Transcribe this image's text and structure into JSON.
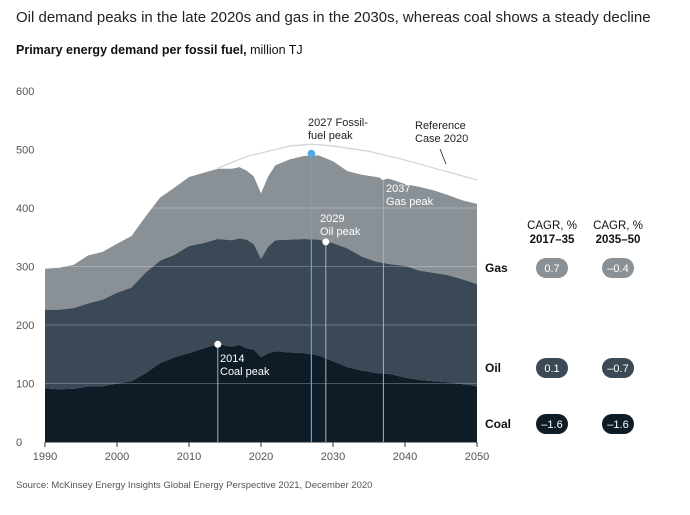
{
  "title": "Oil demand peaks in the late 2020s and gas in the 2030s, whereas coal shows a steady decline",
  "subtitle_bold": "Primary energy demand per fossil fuel,",
  "subtitle_unit": " million TJ",
  "source": "Source: McKinsey Energy Insights Global Energy Perspective 2021, December 2020",
  "colors": {
    "coal": "#0e1c28",
    "oil": "#3b4855",
    "gas": "#8a9196",
    "fossil_peak_line": "#4fa9e3",
    "reference_line": "#d4d8dc",
    "axis_text": "#555555"
  },
  "chart_data": {
    "type": "area",
    "stacked": true,
    "x": [
      1990,
      1992,
      1994,
      1996,
      1998,
      2000,
      2002,
      2004,
      2006,
      2008,
      2010,
      2012,
      2014,
      2016,
      2017,
      2018,
      2019,
      2020,
      2021,
      2022,
      2024,
      2026,
      2028,
      2030,
      2032,
      2034,
      2036,
      2038,
      2040,
      2042,
      2044,
      2046,
      2048,
      2050
    ],
    "series": [
      {
        "name": "Coal",
        "values": [
          92,
          90,
          91,
          95,
          95,
          100,
          104,
          118,
          135,
          145,
          152,
          160,
          167,
          163,
          166,
          160,
          158,
          145,
          152,
          155,
          153,
          152,
          148,
          138,
          128,
          122,
          118,
          116,
          110,
          106,
          104,
          102,
          99,
          95
        ]
      },
      {
        "name": "Oil",
        "values": [
          134,
          136,
          138,
          142,
          148,
          155,
          160,
          172,
          175,
          175,
          183,
          180,
          180,
          182,
          182,
          186,
          180,
          168,
          182,
          190,
          193,
          195,
          198,
          202,
          203,
          195,
          190,
          188,
          191,
          187,
          185,
          183,
          179,
          175
        ]
      },
      {
        "name": "Gas",
        "values": [
          70,
          72,
          74,
          82,
          82,
          84,
          88,
          96,
          108,
          115,
          118,
          120,
          120,
          122,
          122,
          118,
          116,
          112,
          120,
          128,
          137,
          142,
          144,
          140,
          132,
          140,
          145,
          145,
          140,
          143,
          141,
          137,
          135,
          137
        ]
      }
    ],
    "reference_case_2020": {
      "x": [
        2014,
        2018,
        2022,
        2024,
        2027,
        2030,
        2035,
        2040,
        2045,
        2050
      ],
      "values": [
        468,
        488,
        500,
        506,
        509,
        506,
        497,
        482,
        465,
        448
      ]
    },
    "ylim": [
      0,
      600
    ],
    "yticks": [
      "0",
      "100",
      "200",
      "300",
      "400",
      "500",
      "600"
    ],
    "xticks": [
      "1990",
      "2000",
      "2010",
      "2020",
      "2030",
      "2040",
      "2050"
    ],
    "x_tick_values": [
      1990,
      2000,
      2010,
      2020,
      2030,
      2040,
      2050
    ],
    "grid": true,
    "peaks": [
      {
        "year": 2014,
        "value": 167,
        "label_line1": "2014",
        "label_line2": "Coal peak"
      },
      {
        "year": 2029,
        "value": 342,
        "label_line1": "2029",
        "label_line2": "Oil peak"
      },
      {
        "year": 2037,
        "value": 454,
        "label_line1": "2037",
        "label_line2": "Gas peak"
      },
      {
        "year": 2027,
        "value": 493,
        "label_line1": "2027 Fossil-",
        "label_line2": "fuel peak"
      }
    ],
    "reference_label_line1": "Reference",
    "reference_label_line2": "Case 2020",
    "cagr_headers": [
      {
        "line1": "CAGR, %",
        "line2": "2017–35"
      },
      {
        "line1": "CAGR, %",
        "line2": "2035–50"
      }
    ],
    "cagr_rows": [
      {
        "fuel": "Gas",
        "values": [
          "0.7",
          "–0.4"
        ]
      },
      {
        "fuel": "Oil",
        "values": [
          "0.1",
          "–0.7"
        ]
      },
      {
        "fuel": "Coal",
        "values": [
          "–1.6",
          "–1.6"
        ]
      }
    ]
  }
}
